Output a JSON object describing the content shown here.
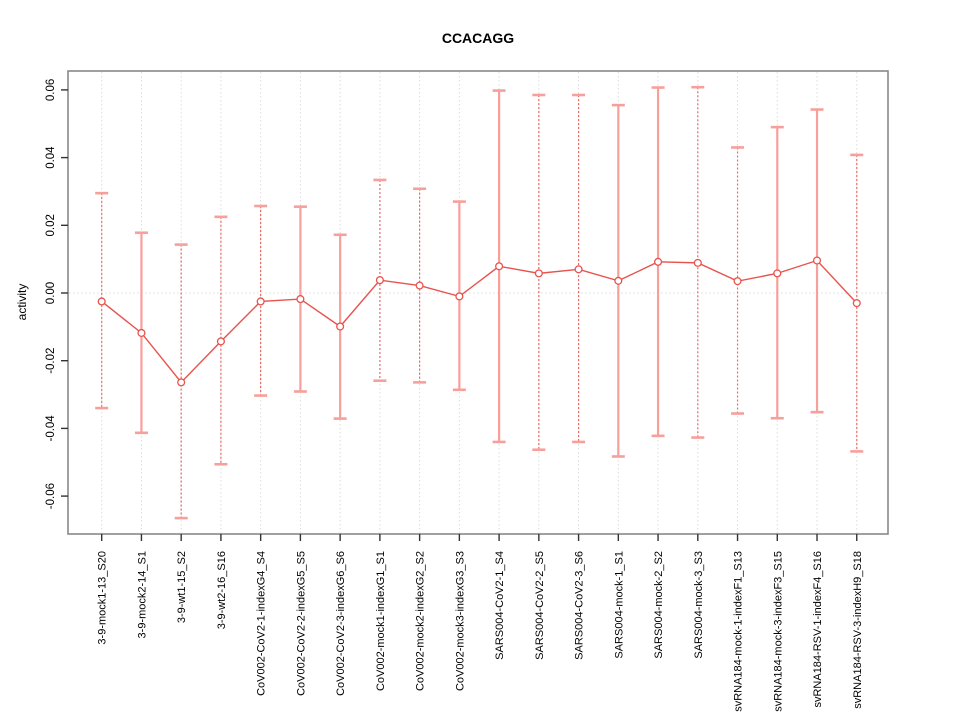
{
  "chart_data": {
    "type": "line",
    "title": "CCACAGG",
    "xlabel": "",
    "ylabel": "activity",
    "ylim": [
      -0.071,
      0.066
    ],
    "legend_position": "none",
    "grid": {
      "vertical_dotted_per_category": true,
      "horizontal_zero_line_dotted": true
    },
    "yticks": [
      "0.06",
      "0.04",
      "0.02",
      "0.00",
      "-0.02",
      "-0.04",
      "-0.06"
    ],
    "ytick_values": [
      0.06,
      0.04,
      0.02,
      0.0,
      -0.02,
      -0.04,
      -0.06
    ],
    "categories": [
      "3-9-mock1-13_S20",
      "3-9-mock2-14_S1",
      "3-9-wt1-15_S2",
      "3-9-wt2-16_S16",
      "CoV002-CoV2-1-indexG4_S4",
      "CoV002-CoV2-2-indexG5_S5",
      "CoV002-CoV2-3-indexG6_S6",
      "CoV002-mock1-indexG1_S1",
      "CoV002-mock2-indexG2_S2",
      "CoV002-mock3-indexG3_S3",
      "SARS004-CoV2-1_S4",
      "SARS004-CoV2-2_S5",
      "SARS004-CoV2-3_S6",
      "SARS004-mock-1_S1",
      "SARS004-mock-2_S2",
      "SARS004-mock-3_S3",
      "svRNA184-mock-1-indexF1_S13",
      "svRNA184-mock-3-indexF3_S15",
      "svRNA184-RSV-1-indexF4_S16",
      "svRNA184-RSV-3-indexH9_S18"
    ],
    "series": [
      {
        "name": "activity",
        "marker": "open-circle",
        "values": [
          -0.0025,
          -0.0118,
          -0.0264,
          -0.0143,
          -0.0025,
          -0.0018,
          -0.0099,
          0.0038,
          0.0022,
          -0.001,
          0.0079,
          0.0058,
          0.007,
          0.0036,
          0.0092,
          0.0089,
          0.0035,
          0.0058,
          0.0096,
          -0.003
        ],
        "error_high": [
          0.0295,
          0.0178,
          0.0143,
          0.0225,
          0.0257,
          0.0255,
          0.0172,
          0.0334,
          0.0308,
          0.027,
          0.0598,
          0.0585,
          0.0585,
          0.0555,
          0.0607,
          0.0608,
          0.043,
          0.049,
          0.0542,
          0.0408
        ],
        "error_low": [
          -0.034,
          -0.0413,
          -0.0665,
          -0.0506,
          -0.0303,
          -0.0291,
          -0.0371,
          -0.0259,
          -0.0264,
          -0.0286,
          -0.044,
          -0.0463,
          -0.044,
          -0.0483,
          -0.0422,
          -0.0427,
          -0.0356,
          -0.037,
          -0.0352,
          -0.0468
        ],
        "stem_styles": [
          "dashed",
          "solid",
          "dashed",
          "dashed",
          "dashed",
          "solid",
          "solid",
          "dashed",
          "dashed",
          "solid",
          "solid",
          "dashed",
          "dashed",
          "solid",
          "solid",
          "dashed",
          "dashed",
          "solid",
          "solid",
          "dashed"
        ]
      }
    ]
  },
  "colors": {
    "series_red": "#e8534e",
    "errorbar_solid": "#f7a09b",
    "errorbar_dashed": "#ee6a62",
    "gridline": "#dcdcdc",
    "axis_box": "#888888",
    "tick": "#333333",
    "text": "#000000",
    "background": "#ffffff"
  }
}
